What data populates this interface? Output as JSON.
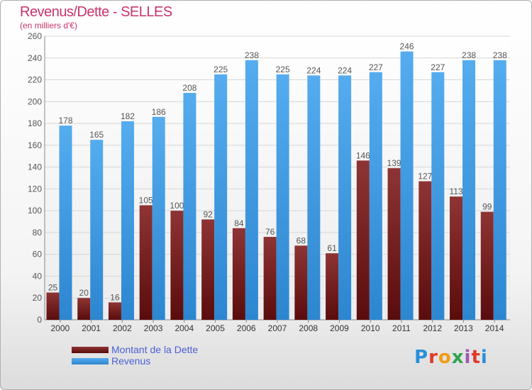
{
  "chart_data": {
    "type": "bar",
    "title": "Revenus/Dette - SELLES",
    "subtitle": "(en milliers d'€)",
    "categories": [
      "2000",
      "2001",
      "2002",
      "2003",
      "2004",
      "2005",
      "2006",
      "2007",
      "2008",
      "2009",
      "2010",
      "2011",
      "2012",
      "2013",
      "2014"
    ],
    "series": [
      {
        "name": "Montant de la Dette",
        "color": "#7a1c1c",
        "values": [
          25,
          20,
          16,
          105,
          100,
          92,
          84,
          76,
          68,
          61,
          146,
          139,
          127,
          113,
          99
        ]
      },
      {
        "name": "Revenus",
        "color": "#3a9ae8",
        "values": [
          178,
          165,
          182,
          186,
          208,
          225,
          238,
          225,
          224,
          224,
          227,
          246,
          227,
          238,
          238
        ]
      }
    ],
    "ylim": [
      0,
      260
    ],
    "yticks": [
      0,
      20,
      40,
      60,
      80,
      100,
      120,
      140,
      160,
      180,
      200,
      220,
      240,
      260
    ],
    "grid": true,
    "legend_position": "bottom-left"
  },
  "logo": {
    "text": "Proxiti",
    "letter_colors": [
      "#2b8fd8",
      "#e0392b",
      "#f39c12",
      "#2ea44f",
      "#9b59b6",
      "#e0392b",
      "#2b8fd8"
    ]
  }
}
